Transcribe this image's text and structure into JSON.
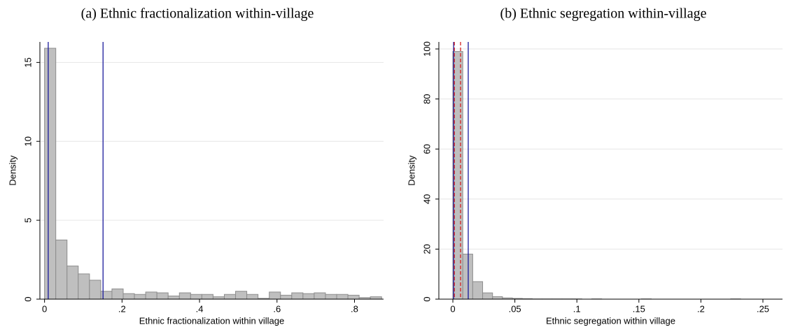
{
  "chart_data": [
    {
      "type": "histogram",
      "title": "(a) Ethnic fractionalization within-village",
      "xlabel": "Ethnic fractionalization within village",
      "ylabel": "Density",
      "bins": [
        0,
        0.029,
        0.058,
        0.087,
        0.116,
        0.145,
        0.174,
        0.203,
        0.232,
        0.261,
        0.29,
        0.319,
        0.348,
        0.377,
        0.406,
        0.435,
        0.464,
        0.493,
        0.522,
        0.551,
        0.58,
        0.609,
        0.638,
        0.667,
        0.696,
        0.725,
        0.754,
        0.783,
        0.812,
        0.841,
        0.87
      ],
      "values": [
        15.9,
        3.75,
        2.1,
        1.6,
        1.2,
        0.5,
        0.65,
        0.35,
        0.3,
        0.45,
        0.4,
        0.2,
        0.4,
        0.3,
        0.3,
        0.15,
        0.3,
        0.5,
        0.3,
        0.05,
        0.45,
        0.25,
        0.4,
        0.35,
        0.4,
        0.3,
        0.3,
        0.25,
        0.1,
        0.15
      ],
      "color": "#bfbfbf",
      "edge_color": "#8c8c8c",
      "xlim": [
        -0.012,
        0.875
      ],
      "xticks": [
        0,
        {
          "value": 0.2,
          "label": ".2"
        },
        {
          "value": 0.4,
          "label": ".4"
        },
        {
          "value": 0.6,
          "label": ".6"
        },
        {
          "value": 0.8,
          "label": ".8"
        }
      ],
      "ylim": [
        0,
        16.3
      ],
      "yticks": [
        0,
        5,
        10,
        15
      ],
      "grid": true,
      "vlines": [
        {
          "value": 0.0095,
          "color": "#1a1a9c",
          "line_style": "solid"
        },
        {
          "value": 0.151,
          "color": "#1a1a9c",
          "line_style": "solid"
        }
      ]
    },
    {
      "type": "histogram",
      "title": "(b) Ethnic segregation within-village",
      "xlabel": "Ethnic segregation within village",
      "ylabel": "Density",
      "bins": [
        0,
        0.008,
        0.016,
        0.024,
        0.032,
        0.04,
        0.048,
        0.056,
        0.064,
        0.072,
        0.08,
        0.088,
        0.096,
        0.104,
        0.112,
        0.12,
        0.128,
        0.136,
        0.144,
        0.152,
        0.16,
        0.168,
        0.176,
        0.184,
        0.192,
        0.2,
        0.208,
        0.216,
        0.224,
        0.232,
        0.24
      ],
      "values": [
        99,
        18,
        7,
        2.5,
        1,
        0.5,
        0.3,
        0.2,
        0.1,
        0.1,
        0.1,
        0.1,
        0.1,
        0,
        0.1,
        0,
        0,
        0,
        0,
        0.1,
        0,
        0,
        0,
        0,
        0,
        0,
        0,
        0,
        0.1,
        0
      ],
      "color": "#bfbfbf",
      "edge_color": "#8c8c8c",
      "xlim": [
        -0.0113,
        0.2658
      ],
      "xticks": [
        0,
        {
          "value": 0.05,
          "label": ".05"
        },
        {
          "value": 0.1,
          "label": ".1"
        },
        {
          "value": 0.15,
          "label": ".15"
        },
        {
          "value": 0.2,
          "label": ".2"
        },
        {
          "value": 0.25,
          "label": ".25"
        }
      ],
      "ylim": [
        0,
        102.8
      ],
      "yticks": [
        0,
        20,
        40,
        60,
        80,
        100
      ],
      "grid": true,
      "vlines": [
        {
          "value": 0.0006,
          "color": "#1a1a9c",
          "line_style": "solid"
        },
        {
          "value": 0.0012,
          "color": "#d62020",
          "line_style": "dashed"
        },
        {
          "value": 0.0062,
          "color": "#d62020",
          "line_style": "dashed"
        },
        {
          "value": 0.0124,
          "color": "#1a1a9c",
          "line_style": "solid"
        }
      ]
    }
  ]
}
